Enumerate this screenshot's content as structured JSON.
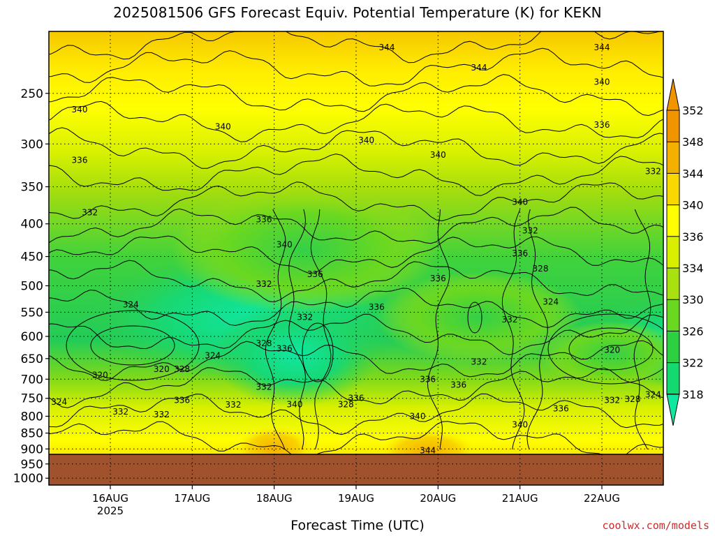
{
  "chart_data": {
    "type": "heatmap",
    "title": "2025081506 GFS Forecast Equiv. Potential Temperature (K) for KEKN",
    "xlabel": "Forecast Time (UTC)",
    "ylabel": "",
    "x_ticks": [
      {
        "label": "16AUG",
        "sub": "2025",
        "value": "2025-08-16T00"
      },
      {
        "label": "17AUG",
        "sub": "",
        "value": "2025-08-17T00"
      },
      {
        "label": "18AUG",
        "sub": "",
        "value": "2025-08-18T00"
      },
      {
        "label": "19AUG",
        "sub": "",
        "value": "2025-08-19T00"
      },
      {
        "label": "20AUG",
        "sub": "",
        "value": "2025-08-20T00"
      },
      {
        "label": "21AUG",
        "sub": "",
        "value": "2025-08-21T00"
      },
      {
        "label": "22AUG",
        "sub": "",
        "value": "2025-08-22T00"
      }
    ],
    "x_range": [
      "2025-08-15T06",
      "2025-08-22T18"
    ],
    "y_ticks": [
      250,
      300,
      350,
      400,
      450,
      500,
      550,
      600,
      650,
      700,
      750,
      800,
      850,
      900,
      950,
      1000
    ],
    "y_range": [
      200,
      1025
    ],
    "y_scale": "log",
    "grid": true,
    "colorbar": {
      "levels": [
        318,
        322,
        326,
        330,
        334,
        336,
        340,
        344,
        348,
        352
      ],
      "colors": [
        "#10e8a0",
        "#14d870",
        "#2cd040",
        "#6ad820",
        "#a8e010",
        "#d8f000",
        "#ffff00",
        "#f8d800",
        "#f4b000",
        "#f09400"
      ],
      "extend": "both"
    },
    "contour_labels": [
      {
        "text": "344",
        "t": "2025-08-19T09",
        "p": 212
      },
      {
        "text": "344",
        "t": "2025-08-20T12",
        "p": 228
      },
      {
        "text": "344",
        "t": "2025-08-22T00",
        "p": 212
      },
      {
        "text": "340",
        "t": "2025-08-22T00",
        "p": 240
      },
      {
        "text": "340",
        "t": "2025-08-15T15",
        "p": 265
      },
      {
        "text": "340",
        "t": "2025-08-17T09",
        "p": 282
      },
      {
        "text": "340",
        "t": "2025-08-19T03",
        "p": 296
      },
      {
        "text": "340",
        "t": "2025-08-20T00",
        "p": 312
      },
      {
        "text": "336",
        "t": "2025-08-22T00",
        "p": 280
      },
      {
        "text": "336",
        "t": "2025-08-15T15",
        "p": 318
      },
      {
        "text": "332",
        "t": "2025-08-22T15",
        "p": 331
      },
      {
        "text": "340",
        "t": "2025-08-21T00",
        "p": 370
      },
      {
        "text": "332",
        "t": "2025-08-15T18",
        "p": 384
      },
      {
        "text": "336",
        "t": "2025-08-17T21",
        "p": 394
      },
      {
        "text": "332",
        "t": "2025-08-21T03",
        "p": 410
      },
      {
        "text": "340",
        "t": "2025-08-18T03",
        "p": 431
      },
      {
        "text": "336",
        "t": "2025-08-21T00",
        "p": 445
      },
      {
        "text": "336",
        "t": "2025-08-18T12",
        "p": 480
      },
      {
        "text": "336",
        "t": "2025-08-20T00",
        "p": 487
      },
      {
        "text": "328",
        "t": "2025-08-21T06",
        "p": 470
      },
      {
        "text": "332",
        "t": "2025-08-17T21",
        "p": 497
      },
      {
        "text": "324",
        "t": "2025-08-16T06",
        "p": 535
      },
      {
        "text": "324",
        "t": "2025-08-21T09",
        "p": 530
      },
      {
        "text": "336",
        "t": "2025-08-19T06",
        "p": 540
      },
      {
        "text": "332",
        "t": "2025-08-18T09",
        "p": 560
      },
      {
        "text": "332",
        "t": "2025-08-20T21",
        "p": 565
      },
      {
        "text": "328",
        "t": "2025-08-17T21",
        "p": 615
      },
      {
        "text": "336",
        "t": "2025-08-18T03",
        "p": 627
      },
      {
        "text": "320",
        "t": "2025-08-22T03",
        "p": 630
      },
      {
        "text": "324",
        "t": "2025-08-17T06",
        "p": 643
      },
      {
        "text": "332",
        "t": "2025-08-20T12",
        "p": 658
      },
      {
        "text": "320",
        "t": "2025-08-16T15",
        "p": 675
      },
      {
        "text": "328",
        "t": "2025-08-16T21",
        "p": 675
      },
      {
        "text": "320",
        "t": "2025-08-15T21",
        "p": 690
      },
      {
        "text": "336",
        "t": "2025-08-19T21",
        "p": 700
      },
      {
        "text": "336",
        "t": "2025-08-20T06",
        "p": 715
      },
      {
        "text": "332",
        "t": "2025-08-17T21",
        "p": 720
      },
      {
        "text": "324",
        "t": "2025-08-22T15",
        "p": 740
      },
      {
        "text": "324",
        "t": "2025-08-15T09",
        "p": 760
      },
      {
        "text": "336",
        "t": "2025-08-16T21",
        "p": 755
      },
      {
        "text": "332",
        "t": "2025-08-17T12",
        "p": 768
      },
      {
        "text": "336",
        "t": "2025-08-19T00",
        "p": 750
      },
      {
        "text": "328",
        "t": "2025-08-18T21",
        "p": 767
      },
      {
        "text": "332",
        "t": "2025-08-22T03",
        "p": 755
      },
      {
        "text": "328",
        "t": "2025-08-22T09",
        "p": 752
      },
      {
        "text": "340",
        "t": "2025-08-18T06",
        "p": 767
      },
      {
        "text": "336",
        "t": "2025-08-21T12",
        "p": 778
      },
      {
        "text": "332",
        "t": "2025-08-16T03",
        "p": 787
      },
      {
        "text": "332",
        "t": "2025-08-16T15",
        "p": 795
      },
      {
        "text": "340",
        "t": "2025-08-19T18",
        "p": 800
      },
      {
        "text": "340",
        "t": "2025-08-21T00",
        "p": 825
      },
      {
        "text": "344",
        "t": "2025-08-19T21",
        "p": 905
      }
    ]
  },
  "credit": "coolwx.com/models"
}
